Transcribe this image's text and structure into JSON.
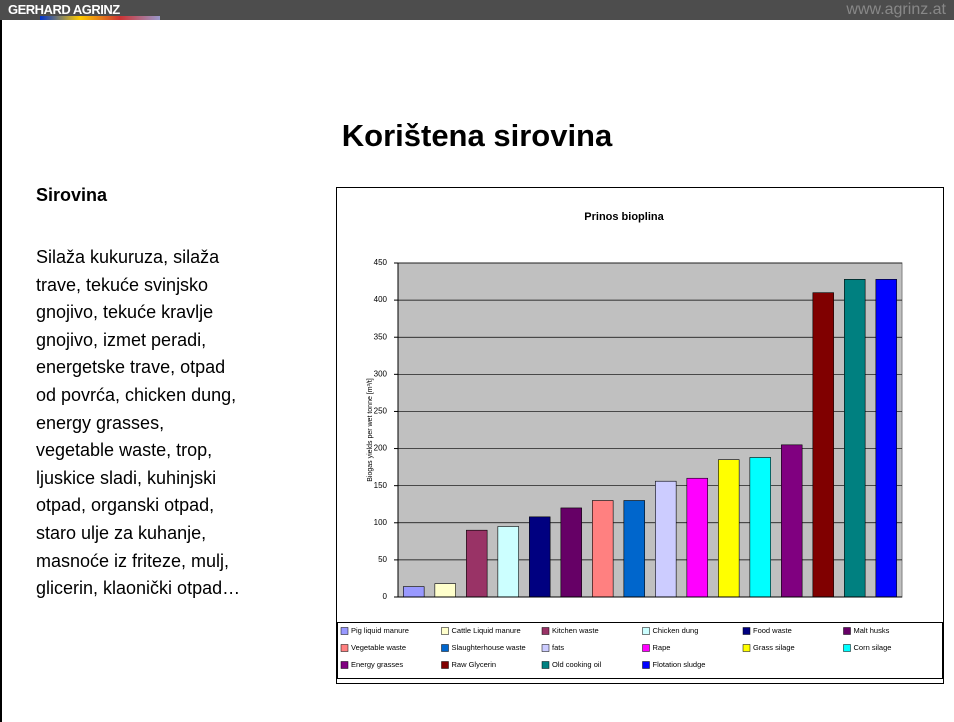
{
  "header": {
    "logo": "GERHARD AGRINZ",
    "url": "www.agrinz.at"
  },
  "title": "Korištena sirovina",
  "sidebar": {
    "heading": "Sirovina",
    "lines": [
      "Silaža kukuruza, silaža",
      "trave, tekuće svinjsko",
      "gnojivo, tekuće kravlje",
      "gnojivo, izmet peradi,",
      "energetske trave, otpad",
      "od povrća, chicken dung,",
      "energy grasses,",
      "vegetable waste, trop,",
      "ljuskice sladi, kuhinjski",
      "otpad, organski otpad,",
      "staro ulje za kuhanje,",
      "masnoće iz friteze, mulj,",
      "glicerin, klaonički otpad…"
    ]
  },
  "chart_data": {
    "type": "bar",
    "title": "Prinos bioplina",
    "y_label": "Biogas yields per wet tonne [m³/t]",
    "ylim": [
      0,
      450
    ],
    "yticks": [
      0,
      50,
      100,
      150,
      200,
      250,
      300,
      350,
      400,
      450
    ],
    "grid": true,
    "series": [
      {
        "name": "Pig liquid manure",
        "color": "#9999ff",
        "values": [
          14
        ]
      },
      {
        "name": "Cattle Liquid manure",
        "color": "#ffffcc",
        "values": [
          18
        ]
      },
      {
        "name": "Kitchen waste",
        "color": "#993366",
        "values": [
          90
        ]
      },
      {
        "name": "Chicken dung",
        "color": "#ccffff",
        "values": [
          95
        ]
      },
      {
        "name": "Food waste",
        "color": "#000080",
        "values": [
          108
        ]
      },
      {
        "name": "Malt husks",
        "color": "#660066",
        "values": [
          120
        ]
      },
      {
        "name": "Vegetable waste",
        "color": "#ff8080",
        "values": [
          130
        ]
      },
      {
        "name": "Slaughterhouse waste",
        "color": "#0066cc",
        "values": [
          130
        ]
      },
      {
        "name": "fats",
        "color": "#ccccff",
        "values": [
          156
        ]
      },
      {
        "name": "Rape",
        "color": "#ff00ff",
        "values": [
          160
        ]
      },
      {
        "name": "Grass silage",
        "color": "#ffff00",
        "values": [
          185
        ]
      },
      {
        "name": "Corn silage",
        "color": "#00ffff",
        "values": [
          188
        ]
      },
      {
        "name": "Energy grasses",
        "color": "#800080",
        "values": [
          205
        ]
      },
      {
        "name": "Raw Glycerin",
        "color": "#800000",
        "values": [
          410
        ]
      },
      {
        "name": "Old cooking oil",
        "color": "#008080",
        "values": [
          428
        ]
      },
      {
        "name": "Flotation sludge",
        "color": "#0000ff",
        "values": [
          428
        ]
      }
    ]
  }
}
